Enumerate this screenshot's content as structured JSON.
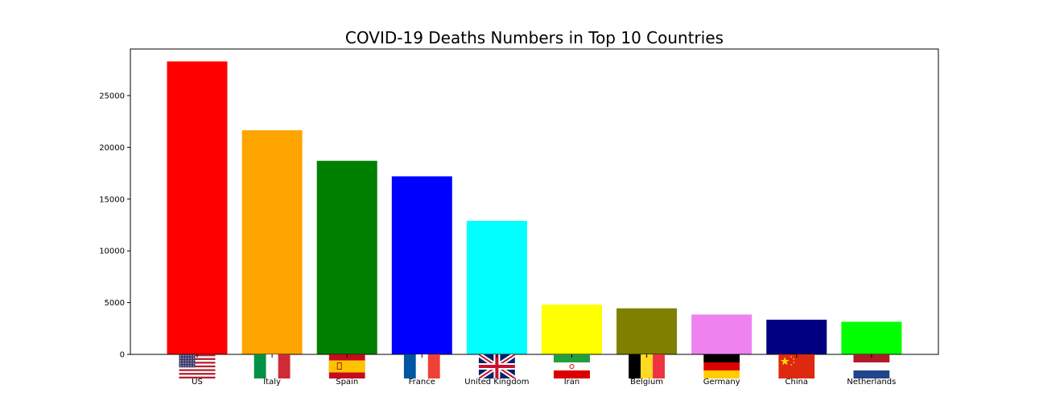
{
  "chart_data": {
    "type": "bar",
    "title": "COVID-19 Deaths Numbers in Top 10 Countries",
    "xlabel": "",
    "ylabel": "",
    "categories": [
      "US",
      "Italy",
      "Spain",
      "France",
      "United Kingdom",
      "Iran",
      "Belgium",
      "Germany",
      "China",
      "Netherlands"
    ],
    "values": [
      28300,
      21650,
      18700,
      17200,
      12900,
      4800,
      4450,
      3850,
      3350,
      3150
    ],
    "colors": [
      "#ff0000",
      "#ffa500",
      "#008000",
      "#0000ff",
      "#00ffff",
      "#ffff00",
      "#808000",
      "#ee82ee",
      "#000080",
      "#00ff00"
    ],
    "flag_icons": [
      "flag-us-icon",
      "flag-italy-icon",
      "flag-spain-icon",
      "flag-france-icon",
      "flag-united-kingdom-icon",
      "flag-iran-icon",
      "flag-belgium-icon",
      "flag-germany-icon",
      "flag-china-icon",
      "flag-netherlands-icon"
    ],
    "ylim": [
      0,
      29500
    ],
    "yticks": [
      0,
      5000,
      10000,
      15000,
      20000,
      25000
    ],
    "grid": false,
    "legend": "none"
  }
}
